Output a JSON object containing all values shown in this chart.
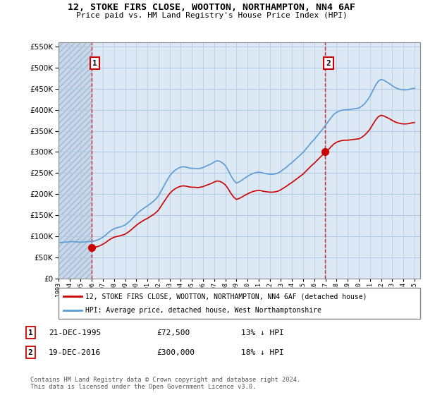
{
  "title": "12, STOKE FIRS CLOSE, WOOTTON, NORTHAMPTON, NN4 6AF",
  "subtitle": "Price paid vs. HM Land Registry's House Price Index (HPI)",
  "legend_label_red": "12, STOKE FIRS CLOSE, WOOTTON, NORTHAMPTON, NN4 6AF (detached house)",
  "legend_label_blue": "HPI: Average price, detached house, West Northamptonshire",
  "transaction1_date": "21-DEC-1995",
  "transaction1_price": "£72,500",
  "transaction1_hpi": "13% ↓ HPI",
  "transaction2_date": "19-DEC-2016",
  "transaction2_price": "£300,000",
  "transaction2_hpi": "18% ↓ HPI",
  "footnote": "Contains HM Land Registry data © Crown copyright and database right 2024.\nThis data is licensed under the Open Government Licence v3.0.",
  "ylim": [
    0,
    560000
  ],
  "yticks": [
    0,
    50000,
    100000,
    150000,
    200000,
    250000,
    300000,
    350000,
    400000,
    450000,
    500000,
    550000
  ],
  "background_color": "#dce9f5",
  "hatch_color": "#c8d8ea",
  "grid_color": "#b0c8e0",
  "red_color": "#cc0000",
  "blue_color": "#5b9bd5",
  "marker1_date": 1995.97,
  "marker1_value": 72500,
  "marker2_date": 2016.97,
  "marker2_value": 300000,
  "xmin": 1993.0,
  "xmax": 2025.5
}
